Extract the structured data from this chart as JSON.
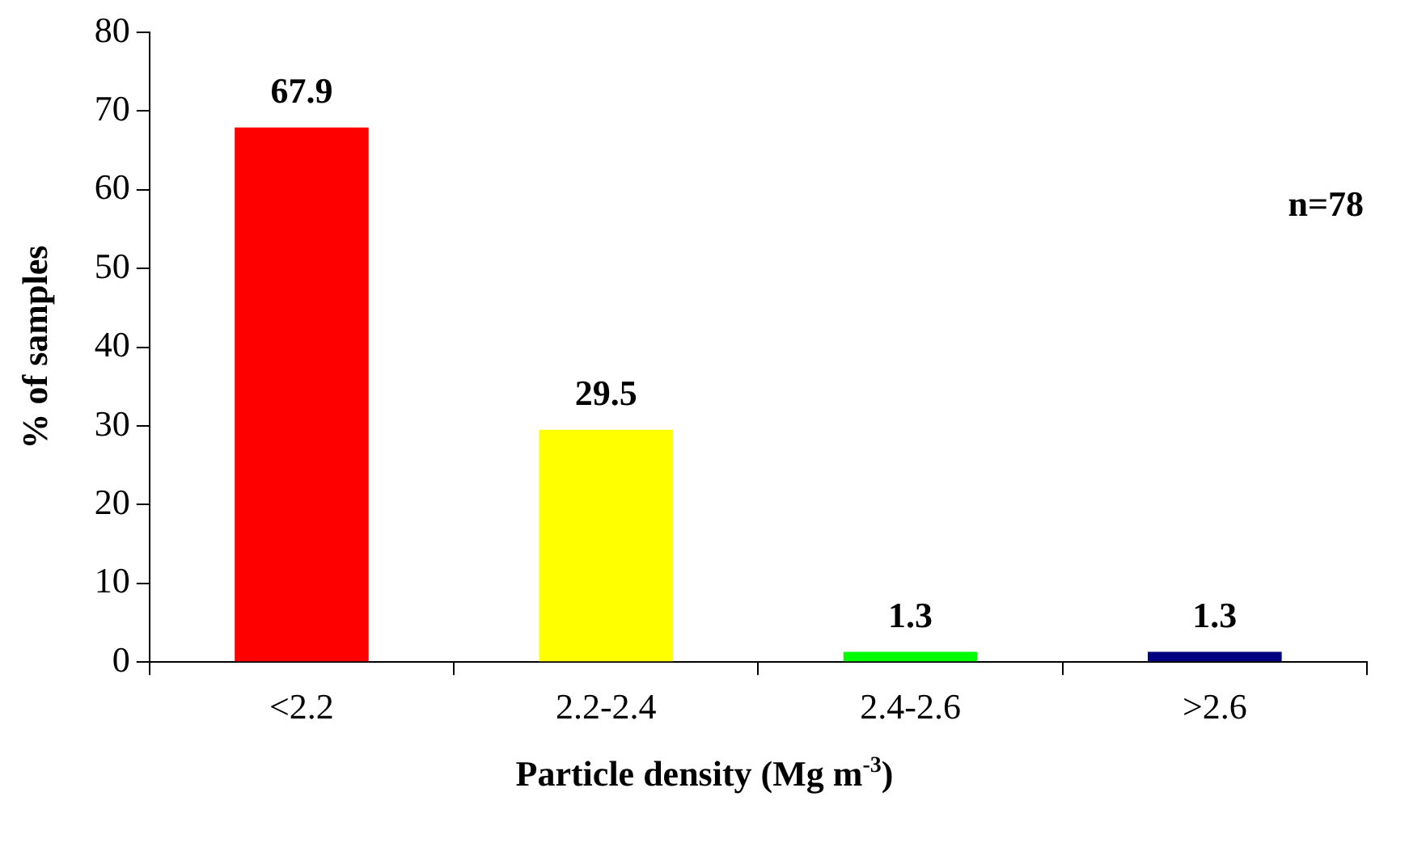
{
  "chart_data": {
    "type": "bar",
    "xlabel": "Particle density (Mg m$^{-3}$)",
    "ylabel": "% of samples",
    "categories": [
      "<2.2",
      "2.2-2.4",
      "2.4-2.6",
      ">2.6"
    ],
    "values": [
      67.9,
      29.5,
      1.3,
      1.3
    ],
    "colors": [
      "#ff0000",
      "#ffff00",
      "#00ff00",
      "#000080"
    ],
    "ylim": [
      0,
      80
    ],
    "yticks": [
      0,
      10,
      20,
      30,
      40,
      50,
      60,
      70,
      80
    ],
    "grid": false,
    "legend": false,
    "data_labels": true,
    "annotations": [
      "n=78"
    ]
  }
}
